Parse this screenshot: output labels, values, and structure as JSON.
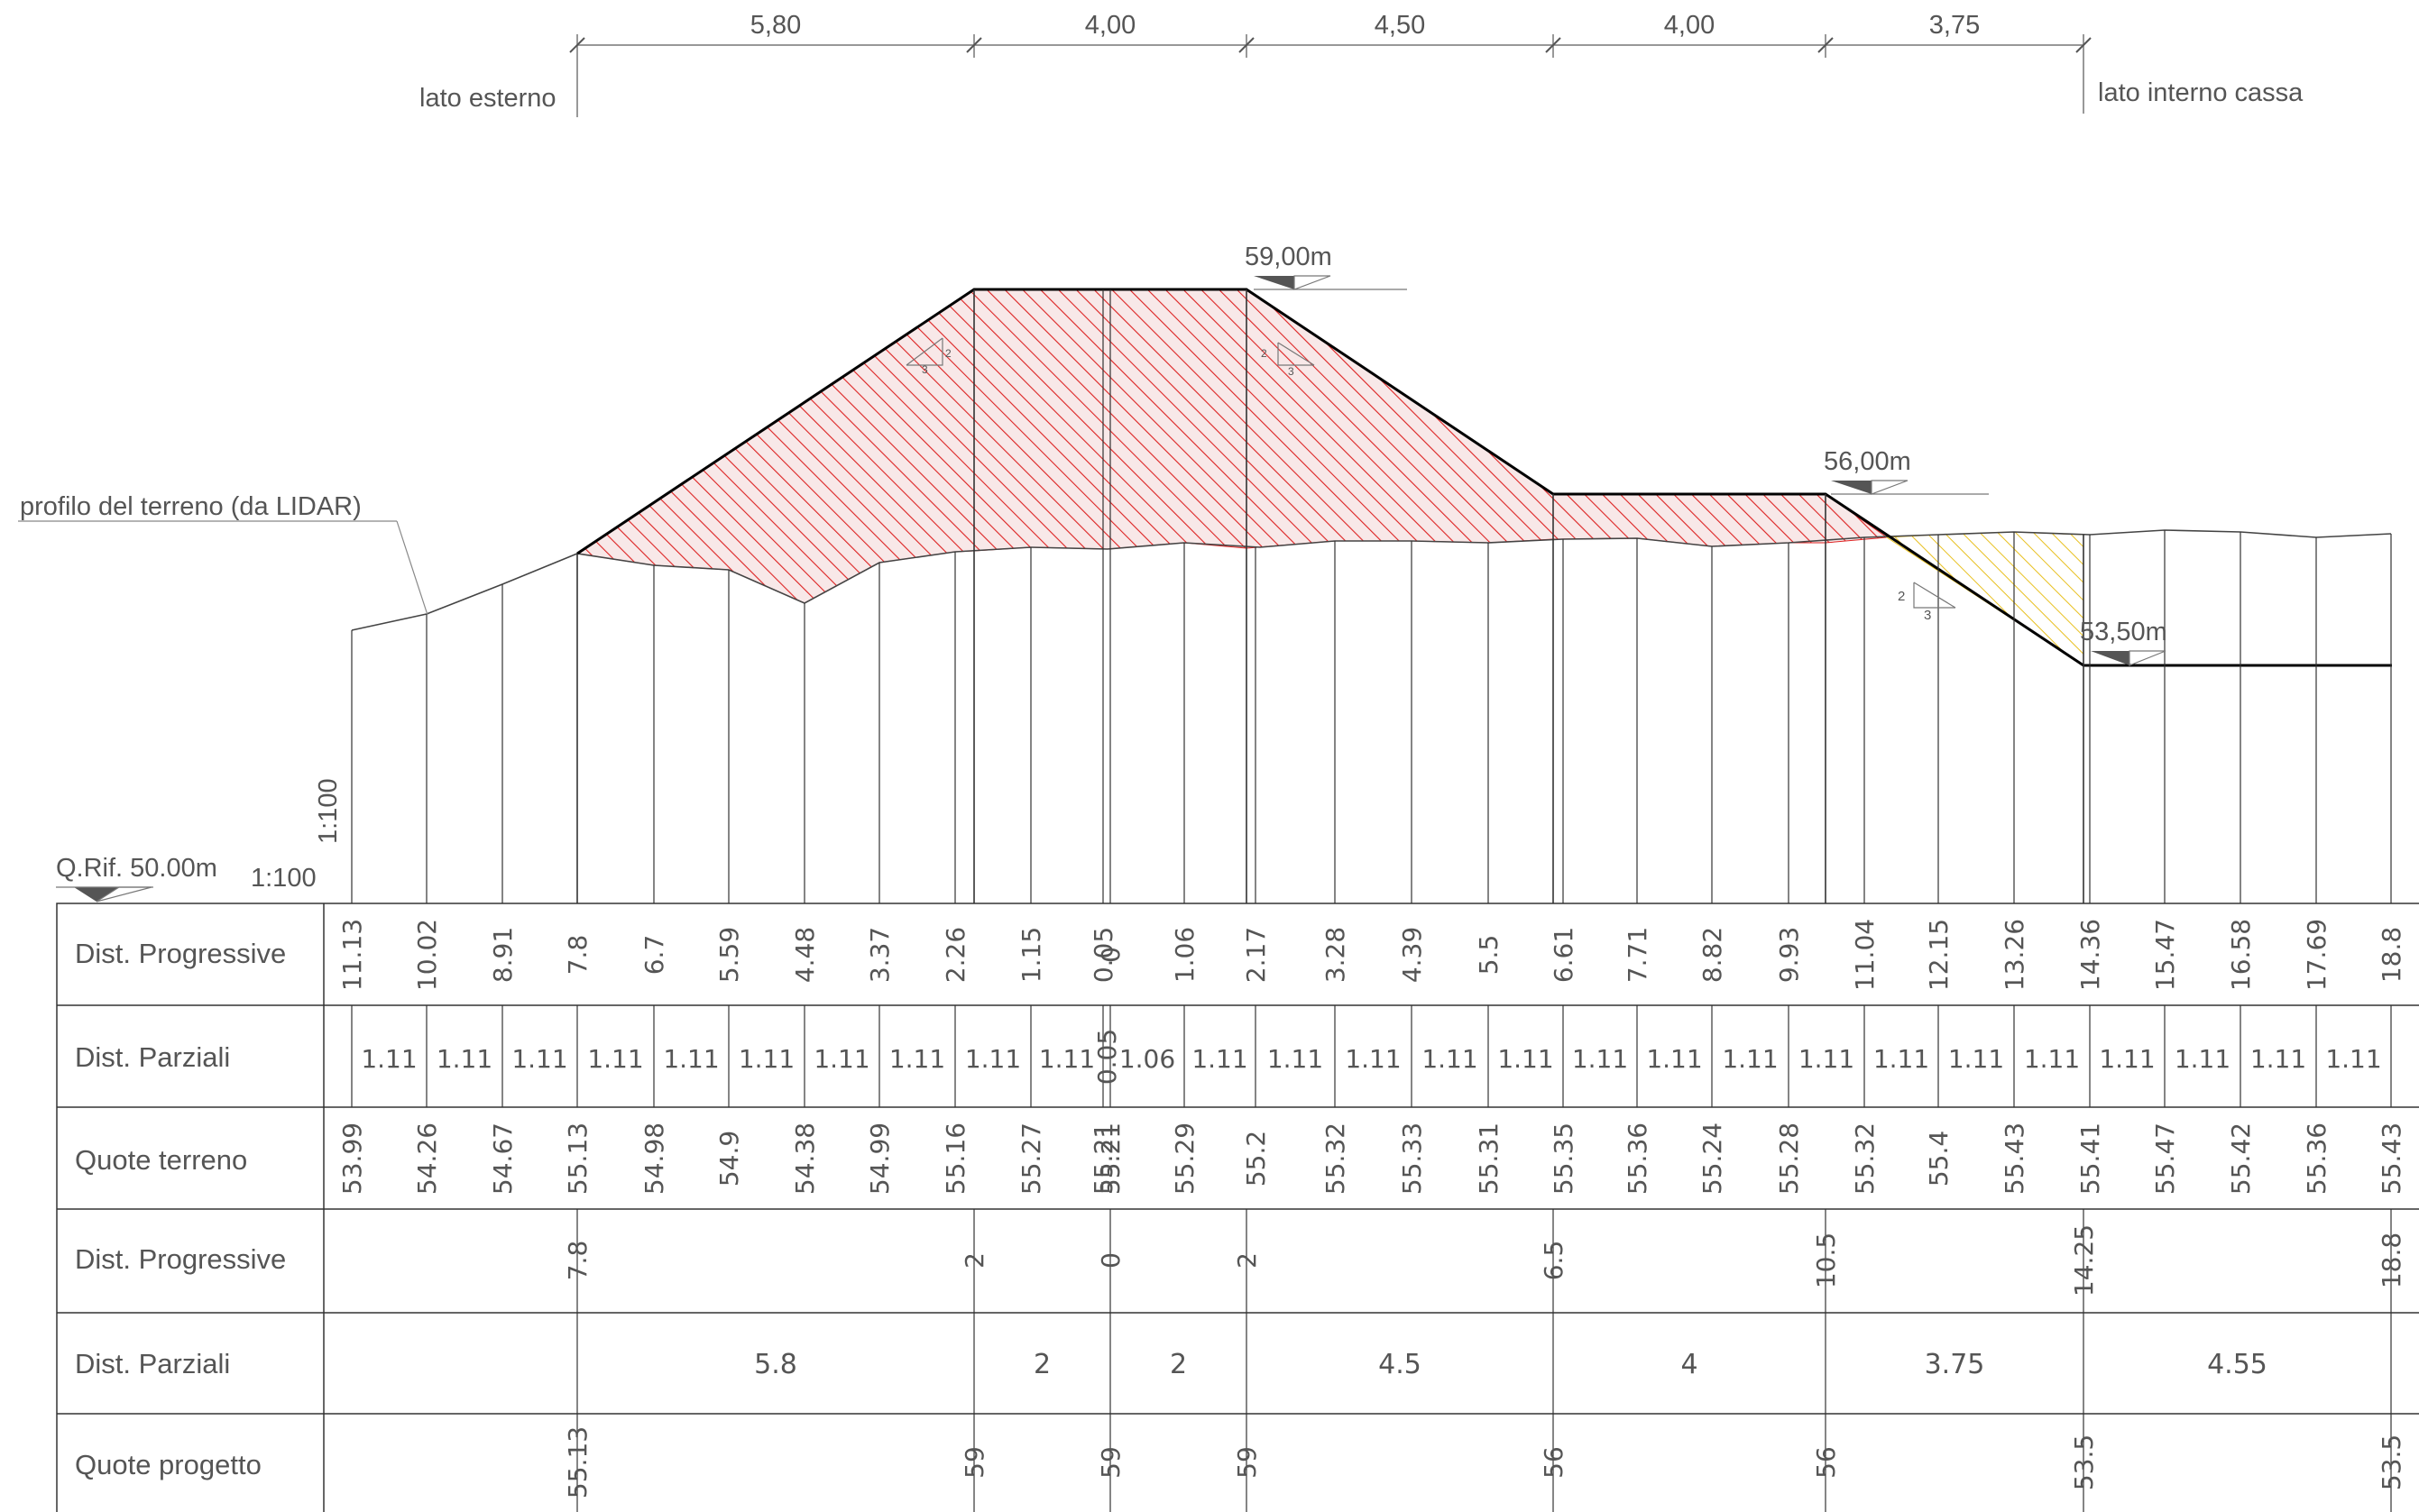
{
  "dimensions": {
    "segments": [
      {
        "label": "5,80"
      },
      {
        "label": "4,00"
      },
      {
        "label": "4,50"
      },
      {
        "label": "4,00"
      },
      {
        "label": "3,75"
      }
    ],
    "left_label": "lato esterno",
    "right_label": "lato interno cassa"
  },
  "annotations": {
    "crest_level": "59,00m",
    "berm_level": "56,00m",
    "base_level": "53,50m",
    "terrain_profile": "profilo del terreno (da LIDAR)",
    "reference_level": "Q.Rif. 50.00m",
    "vertical_scale": "1:100",
    "horizontal_scale": "1:100",
    "slope_ratio_1": "2",
    "slope_ratio_2": "3"
  },
  "table": {
    "row_labels": [
      "Dist. Progressive",
      "Dist. Parziali",
      "Quote terreno",
      "Dist. Progressive",
      "Dist. Parziali",
      "Quote progetto"
    ],
    "terrain_progressive": [
      "11.13",
      "10.02",
      "8.91",
      "7.8",
      "6.7",
      "5.59",
      "4.48",
      "3.37",
      "2.26",
      "1.15",
      "0.05",
      "0",
      "1.06",
      "2.17",
      "3.28",
      "4.39",
      "5.5",
      "6.61",
      "7.71",
      "8.82",
      "9.93",
      "11.04",
      "12.15",
      "13.26",
      "14.36",
      "15.47",
      "16.58",
      "17.69",
      "18.8"
    ],
    "terrain_partial": [
      "1.11",
      "1.11",
      "1.11",
      "1.11",
      "1.11",
      "1.11",
      "1.11",
      "1.11",
      "1.11",
      "1.11",
      "0.05",
      "1.06",
      "1.11",
      "1.11",
      "1.11",
      "1.11",
      "1.11",
      "1.11",
      "1.11",
      "1.11",
      "1.11",
      "1.11",
      "1.11",
      "1.11",
      "1.11",
      "1.11",
      "1.11",
      "1.11"
    ],
    "terrain_levels": [
      "53.99",
      "54.26",
      "54.67",
      "55.13",
      "54.98",
      "54.9",
      "54.38",
      "54.99",
      "55.16",
      "55.27",
      "55.21",
      "55.21",
      "55.29",
      "55.2",
      "55.32",
      "55.33",
      "55.31",
      "55.35",
      "55.36",
      "55.24",
      "55.28",
      "55.32",
      "55.4",
      "55.43",
      "55.41",
      "55.47",
      "55.42",
      "55.36",
      "55.43"
    ],
    "project_progressive": [
      "7.8",
      "2",
      "0",
      "2",
      "6.5",
      "10.5",
      "14.25",
      "18.8"
    ],
    "project_partial": [
      "5.8",
      "2",
      "2",
      "4.5",
      "4",
      "3.75",
      "4.55"
    ],
    "project_levels": [
      "55.13",
      "59",
      "59",
      "59",
      "56",
      "56",
      "53.5",
      "53.5"
    ]
  },
  "colors": {
    "line": "#000000",
    "text": "#555555",
    "fill_hatch": "#dd2222",
    "cut_hatch": "#e8c020"
  }
}
